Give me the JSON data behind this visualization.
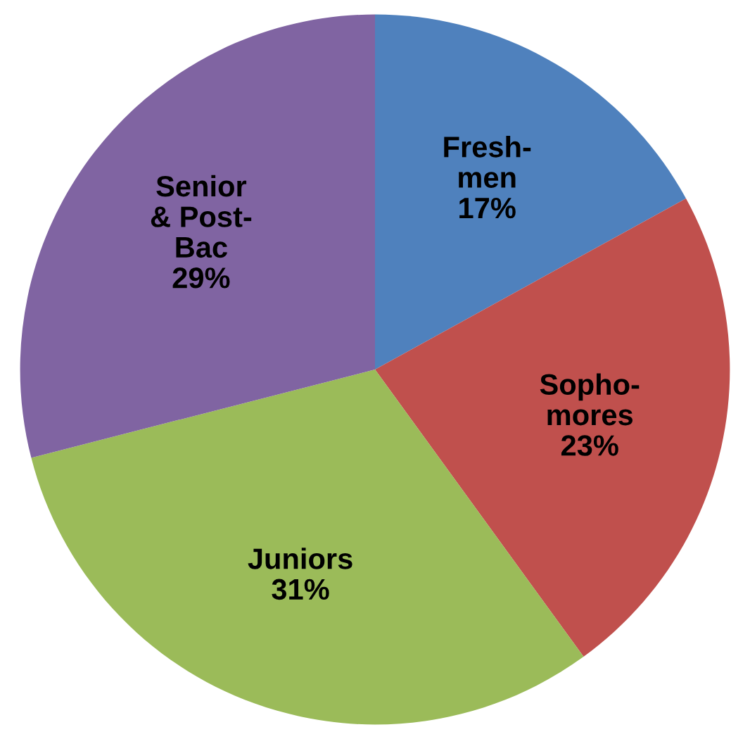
{
  "chart_data": {
    "type": "pie",
    "categories": [
      "Fresh-\nmen",
      "Sopho-\nmores",
      "Juniors",
      "Senior\n& Post-\nBac"
    ],
    "values": [
      17,
      23,
      31,
      29
    ],
    "value_labels": [
      "17%",
      "23%",
      "31%",
      "29%"
    ],
    "colors": [
      "#4f81bd",
      "#c0504d",
      "#9bbb59",
      "#8064a2"
    ]
  }
}
